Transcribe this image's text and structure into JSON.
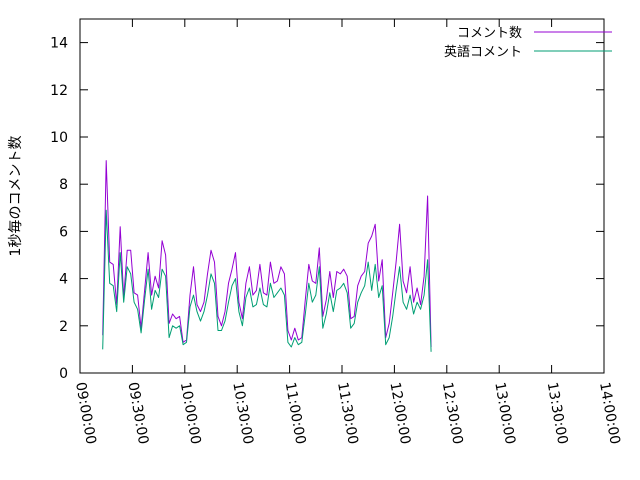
{
  "chart_data": {
    "type": "line",
    "title": "",
    "xlabel": "",
    "ylabel": "1秒毎のコメント数",
    "xlim": [
      "09:00:00",
      "14:00:00"
    ],
    "ylim": [
      0,
      15
    ],
    "y_ticks": [
      0,
      2,
      4,
      6,
      8,
      10,
      12,
      14
    ],
    "x_ticks": [
      "09:00:00",
      "09:30:00",
      "10:00:00",
      "10:30:00",
      "11:00:00",
      "11:30:00",
      "12:00:00",
      "12:30:00",
      "13:00:00",
      "13:30:00",
      "14:00:00"
    ],
    "grid": false,
    "legend_position": "top-right",
    "x_interval_minutes": 2,
    "x_start": "09:13:00",
    "series": [
      {
        "name": "コメント数",
        "color": "#9400d3",
        "values": [
          1.6,
          9.0,
          4.7,
          4.6,
          2.9,
          6.2,
          3.2,
          5.2,
          5.2,
          3.4,
          3.3,
          1.9,
          3.5,
          5.1,
          3.3,
          4.1,
          3.6,
          5.6,
          5.0,
          2.1,
          2.5,
          2.3,
          2.4,
          1.3,
          1.4,
          3.3,
          4.5,
          2.9,
          2.6,
          3.0,
          4.2,
          5.2,
          4.7,
          2.4,
          2.0,
          2.6,
          3.8,
          4.4,
          5.1,
          3.0,
          2.3,
          3.8,
          4.5,
          3.3,
          3.5,
          4.6,
          3.4,
          3.3,
          4.7,
          3.8,
          3.9,
          4.5,
          4.2,
          1.8,
          1.4,
          1.9,
          1.4,
          1.5,
          3.1,
          4.6,
          3.9,
          3.8,
          5.3,
          2.4,
          3.1,
          4.3,
          3.2,
          4.3,
          4.2,
          4.4,
          4.1,
          2.3,
          2.4,
          3.7,
          4.1,
          4.3,
          5.5,
          5.8,
          6.3,
          3.9,
          4.8,
          1.5,
          2.1,
          3.4,
          4.7,
          6.3,
          3.9,
          3.4,
          4.5,
          3.0,
          3.6,
          2.9,
          4.1,
          7.5,
          1.1
        ]
      },
      {
        "name": "英語コメント",
        "color": "#009e73",
        "values": [
          1.0,
          6.9,
          3.8,
          3.7,
          2.6,
          5.1,
          3.0,
          4.5,
          4.2,
          3.0,
          2.7,
          1.7,
          3.1,
          4.4,
          2.7,
          3.5,
          3.2,
          4.4,
          4.1,
          1.5,
          2.0,
          1.9,
          2.0,
          1.2,
          1.3,
          2.8,
          3.3,
          2.6,
          2.2,
          2.6,
          3.3,
          4.2,
          3.8,
          1.8,
          1.8,
          2.2,
          3.0,
          3.7,
          4.0,
          2.6,
          2.0,
          3.2,
          3.6,
          2.8,
          2.9,
          3.6,
          2.9,
          2.8,
          3.8,
          3.2,
          3.4,
          3.6,
          3.3,
          1.3,
          1.1,
          1.5,
          1.2,
          1.3,
          2.5,
          3.8,
          3.0,
          3.3,
          4.5,
          1.9,
          2.5,
          3.4,
          2.6,
          3.5,
          3.6,
          3.8,
          3.4,
          1.9,
          2.1,
          3.0,
          3.4,
          3.7,
          4.7,
          3.5,
          4.6,
          3.2,
          3.7,
          1.2,
          1.5,
          2.4,
          3.5,
          4.5,
          3.0,
          2.7,
          3.3,
          2.5,
          3.0,
          2.7,
          3.3,
          4.8,
          0.9
        ]
      }
    ]
  }
}
